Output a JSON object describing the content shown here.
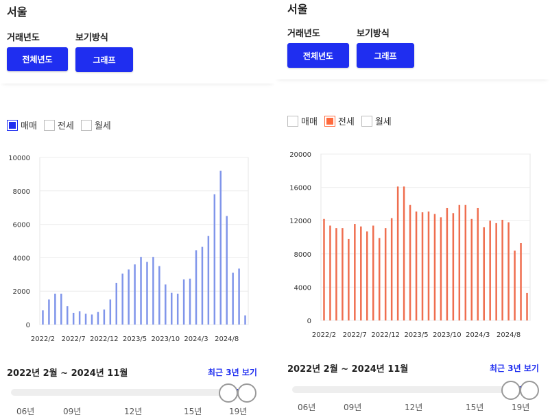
{
  "left": {
    "region": "서울",
    "year_label": "거래년도",
    "view_label": "보기방식",
    "year_button": "전체년도",
    "view_button": "그래프",
    "legend": [
      {
        "label": "매매",
        "checked": true,
        "color": "#1f2ef0"
      },
      {
        "label": "전세",
        "checked": false,
        "color": "#ff6a3d"
      },
      {
        "label": "월세",
        "checked": false,
        "color": "#999999"
      }
    ],
    "range_text": "2022년 2월 ~ 2024년 11월",
    "recent_link": "최근 3년 보기",
    "slider_ticks": [
      "06년",
      "09년",
      "12년",
      "15년",
      "19년"
    ]
  },
  "right": {
    "region": "서울",
    "year_label": "거래년도",
    "view_label": "보기방식",
    "year_button": "전체년도",
    "view_button": "그래프",
    "legend": [
      {
        "label": "매매",
        "checked": false,
        "color": "#1f2ef0"
      },
      {
        "label": "전세",
        "checked": true,
        "color": "#ff6a3d"
      },
      {
        "label": "월세",
        "checked": false,
        "color": "#999999"
      }
    ],
    "range_text": "2022년 2월 ~ 2024년 11월",
    "recent_link": "최근 3년 보기",
    "slider_ticks": [
      "06년",
      "09년",
      "12년",
      "15년",
      "19년"
    ]
  },
  "chart_data": [
    {
      "type": "bar",
      "series": [
        {
          "name": "매매",
          "color": "#8095ea",
          "values": [
            850,
            1500,
            1850,
            1850,
            1100,
            700,
            800,
            650,
            600,
            750,
            900,
            1500,
            2500,
            3050,
            3300,
            3600,
            4050,
            3750,
            4050,
            3500,
            2400,
            1900,
            1850,
            2700,
            2750,
            4450,
            4650,
            5300,
            7800,
            9200,
            6500,
            3100,
            3350,
            550
          ]
        }
      ],
      "categories": [
        "2022/2",
        "2022/3",
        "2022/4",
        "2022/5",
        "2022/6",
        "2022/7",
        "2022/8",
        "2022/9",
        "2022/10",
        "2022/11",
        "2022/12",
        "2023/1",
        "2023/2",
        "2023/3",
        "2023/4",
        "2023/5",
        "2023/6",
        "2023/7",
        "2023/8",
        "2023/9",
        "2023/10",
        "2023/11",
        "2023/12",
        "2024/1",
        "2024/2",
        "2024/3",
        "2024/4",
        "2024/5",
        "2024/6",
        "2024/7",
        "2024/8",
        "2024/9",
        "2024/10",
        "2024/11"
      ],
      "x_tick_labels": [
        "2022/2",
        "2022/7",
        "2022/12",
        "2023/5",
        "2023/10",
        "2024/3",
        "2024/8"
      ],
      "y_ticks": [
        0,
        2000,
        4000,
        6000,
        8000,
        10000
      ],
      "ylim": [
        0,
        10000
      ]
    },
    {
      "type": "bar",
      "series": [
        {
          "name": "전세",
          "color": "#ef6e4f",
          "values": [
            12200,
            11400,
            11100,
            11100,
            9800,
            11600,
            11300,
            10700,
            11400,
            9900,
            11100,
            12300,
            16100,
            16100,
            13900,
            13100,
            13000,
            13100,
            12800,
            12400,
            13500,
            12900,
            13900,
            13900,
            12200,
            13500,
            11200,
            12000,
            11700,
            12100,
            11800,
            8400,
            9300,
            3300
          ]
        }
      ],
      "categories": [
        "2022/2",
        "2022/3",
        "2022/4",
        "2022/5",
        "2022/6",
        "2022/7",
        "2022/8",
        "2022/9",
        "2022/10",
        "2022/11",
        "2022/12",
        "2023/1",
        "2023/2",
        "2023/3",
        "2023/4",
        "2023/5",
        "2023/6",
        "2023/7",
        "2023/8",
        "2023/9",
        "2023/10",
        "2023/11",
        "2023/12",
        "2024/1",
        "2024/2",
        "2024/3",
        "2024/4",
        "2024/5",
        "2024/6",
        "2024/7",
        "2024/8",
        "2024/9",
        "2024/10",
        "2024/11"
      ],
      "x_tick_labels": [
        "2022/2",
        "2022/7",
        "2022/12",
        "2023/5",
        "2023/10",
        "2024/3",
        "2024/8"
      ],
      "y_ticks": [
        0,
        4000,
        8000,
        12000,
        16000,
        20000
      ],
      "ylim": [
        0,
        20000
      ]
    }
  ]
}
